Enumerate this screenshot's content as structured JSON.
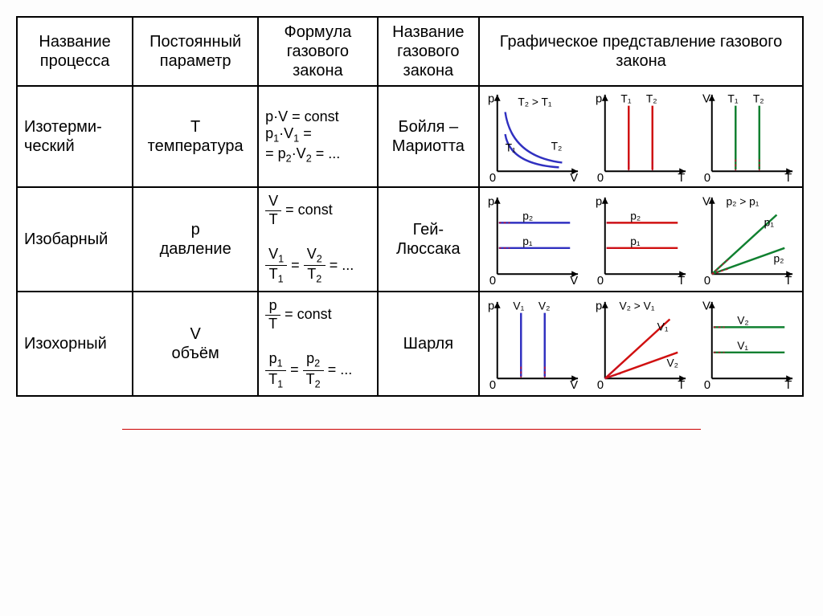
{
  "headers": {
    "c1": "Название процесса",
    "c2": "Постоянный параметр",
    "c3": "Формула газового закона",
    "c4": "Название газового закона",
    "c5": "Графическое представление газового закона"
  },
  "rows": [
    {
      "name_l1": "Изотерми-",
      "name_l2": "ческий",
      "param_sym": "T",
      "param_word": "температура",
      "formula_html": "p·V = const<br>p<sub>1</sub>·V<sub>1</sub> =<br>= p<sub>2</sub>·V<sub>2</sub> = ...",
      "law": "Бойля – Мариотта",
      "graphs": {
        "g1": {
          "yaxis": "p",
          "xaxis": "V",
          "type": "hyperbola2",
          "labels": [
            "T₁",
            "T₂",
            "T₂ > T₁"
          ],
          "color": "#3030c0"
        },
        "g2": {
          "yaxis": "p",
          "xaxis": "T",
          "type": "vlines2",
          "labels": [
            "T₁",
            "T₂"
          ],
          "color": "#d01010"
        },
        "g3": {
          "yaxis": "V",
          "xaxis": "T",
          "type": "vlines2",
          "labels": [
            "T₁",
            "T₂"
          ],
          "color": "#108030"
        }
      }
    },
    {
      "name_l1": "Изобарный",
      "name_l2": "",
      "param_sym": "p",
      "param_word": "давление",
      "formula_frac_html": "<span class='frac'><span class='n'>V</span><span class='d'>T</span></span> = const<br><br><span class='frac'><span class='n'>V<sub>1</sub></span><span class='d'>T<sub>1</sub></span></span> = <span class='frac'><span class='n'>V<sub>2</sub></span><span class='d'>T<sub>2</sub></span></span> = ...",
      "law": "Гей-Люссака",
      "graphs": {
        "g1": {
          "yaxis": "p",
          "xaxis": "V",
          "type": "hlines2",
          "labels": [
            "p₁",
            "p₂"
          ],
          "color": "#3030c0"
        },
        "g2": {
          "yaxis": "p",
          "xaxis": "T",
          "type": "hlines2",
          "labels": [
            "p₁",
            "p₂"
          ],
          "color": "#d01010"
        },
        "g3": {
          "yaxis": "V",
          "xaxis": "T",
          "type": "rays2",
          "labels": [
            "p₁",
            "p₂",
            "p₂ > p₁"
          ],
          "color": "#108030"
        }
      }
    },
    {
      "name_l1": "Изохорный",
      "name_l2": "",
      "param_sym": "V",
      "param_word": "объём",
      "formula_frac_html": "<span class='frac'><span class='n'>p</span><span class='d'>T</span></span> = const<br><br><span class='frac'><span class='n'>p<sub>1</sub></span><span class='d'>T<sub>1</sub></span></span> = <span class='frac'><span class='n'>p<sub>2</sub></span><span class='d'>T<sub>2</sub></span></span> = ...",
      "law": "Шарля",
      "graphs": {
        "g1": {
          "yaxis": "p",
          "xaxis": "V",
          "type": "vlines2",
          "labels": [
            "V₁",
            "V₂"
          ],
          "color": "#3030c0"
        },
        "g2": {
          "yaxis": "p",
          "xaxis": "T",
          "type": "rays2",
          "labels": [
            "V₁",
            "V₂",
            "V₂ > V₁"
          ],
          "color": "#d01010"
        },
        "g3": {
          "yaxis": "V",
          "xaxis": "T",
          "type": "hlines2",
          "labels": [
            "V₁",
            "V₂"
          ],
          "color": "#108030"
        }
      }
    }
  ],
  "style": {
    "axis_color": "#000",
    "dash_color": "#c01030",
    "font": "Arial",
    "hr_color": "#c00000"
  }
}
